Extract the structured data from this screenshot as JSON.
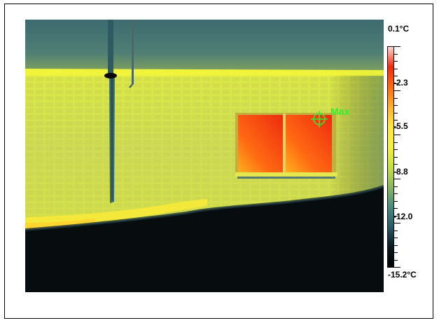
{
  "thermal_image": {
    "marker_label": "Max",
    "marker_color": "#33ee33"
  },
  "temperature_scale": {
    "max_label": "0.1°C",
    "min_label": "-15.2°C",
    "tick_labels": [
      "-2.3",
      "-5.5",
      "-8.8",
      "-12.0"
    ],
    "max_value": 0.1,
    "min_value": -15.2,
    "palette": [
      "#ffd8d0",
      "#ee2a10",
      "#ff6a10",
      "#ffb030",
      "#ffe840",
      "#f4f040",
      "#c8e040",
      "#8ab860",
      "#4a8a80",
      "#2a5a68",
      "#0a1a20",
      "#000000"
    ]
  }
}
